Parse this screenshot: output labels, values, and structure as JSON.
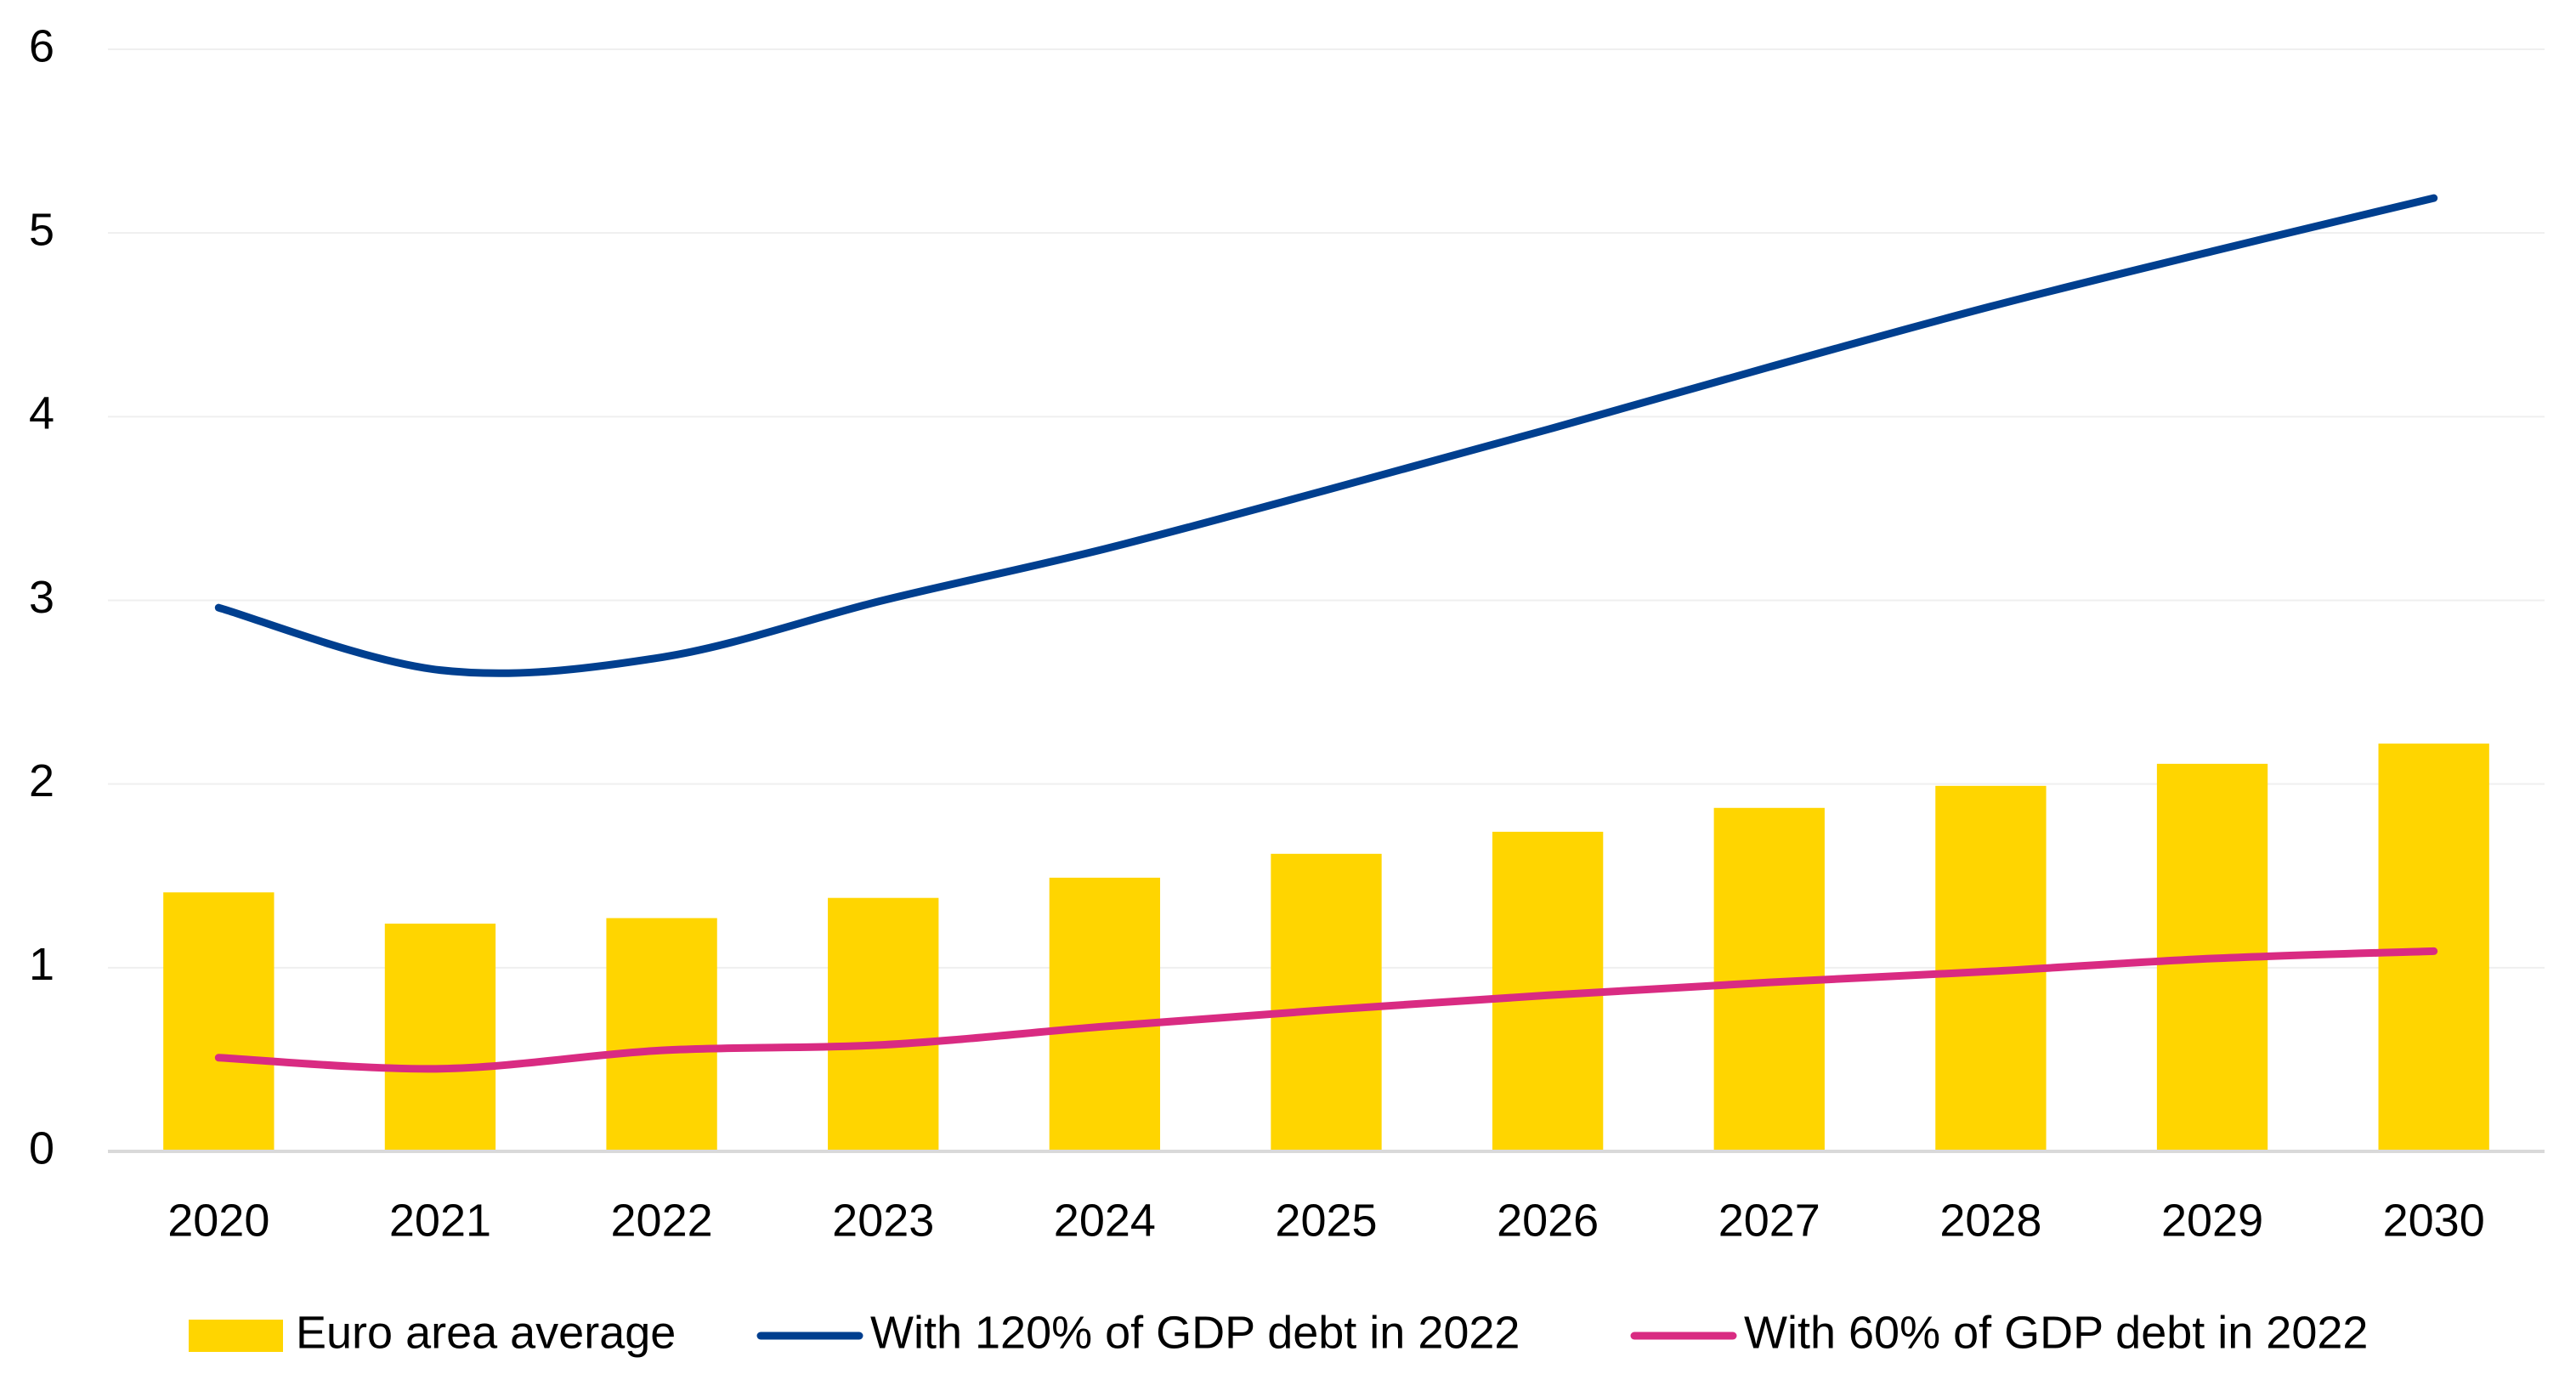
{
  "chart_data": {
    "type": "bar",
    "categories": [
      "2020",
      "2021",
      "2022",
      "2023",
      "2024",
      "2025",
      "2026",
      "2027",
      "2028",
      "2029",
      "2030"
    ],
    "series": [
      {
        "name": "Euro area average",
        "type": "bar",
        "color": "#FFD500",
        "values": [
          1.41,
          1.24,
          1.27,
          1.38,
          1.49,
          1.62,
          1.74,
          1.87,
          1.99,
          2.11,
          2.22
        ]
      },
      {
        "name": "With 120% of GDP debt in 2022",
        "type": "line",
        "color": "#003F8F",
        "values": [
          2.96,
          2.62,
          2.69,
          3.0,
          3.28,
          3.6,
          3.93,
          4.27,
          4.6,
          4.9,
          5.19
        ]
      },
      {
        "name": "With 60% of GDP debt in 2022",
        "type": "line",
        "color": "#D92B82",
        "values": [
          0.51,
          0.45,
          0.55,
          0.58,
          0.68,
          0.77,
          0.85,
          0.92,
          0.98,
          1.05,
          1.09
        ]
      }
    ],
    "ylim": [
      0,
      6
    ],
    "yticks": [
      0,
      1,
      2,
      3,
      4,
      5,
      6
    ],
    "grid": true,
    "legend": "bottom"
  }
}
